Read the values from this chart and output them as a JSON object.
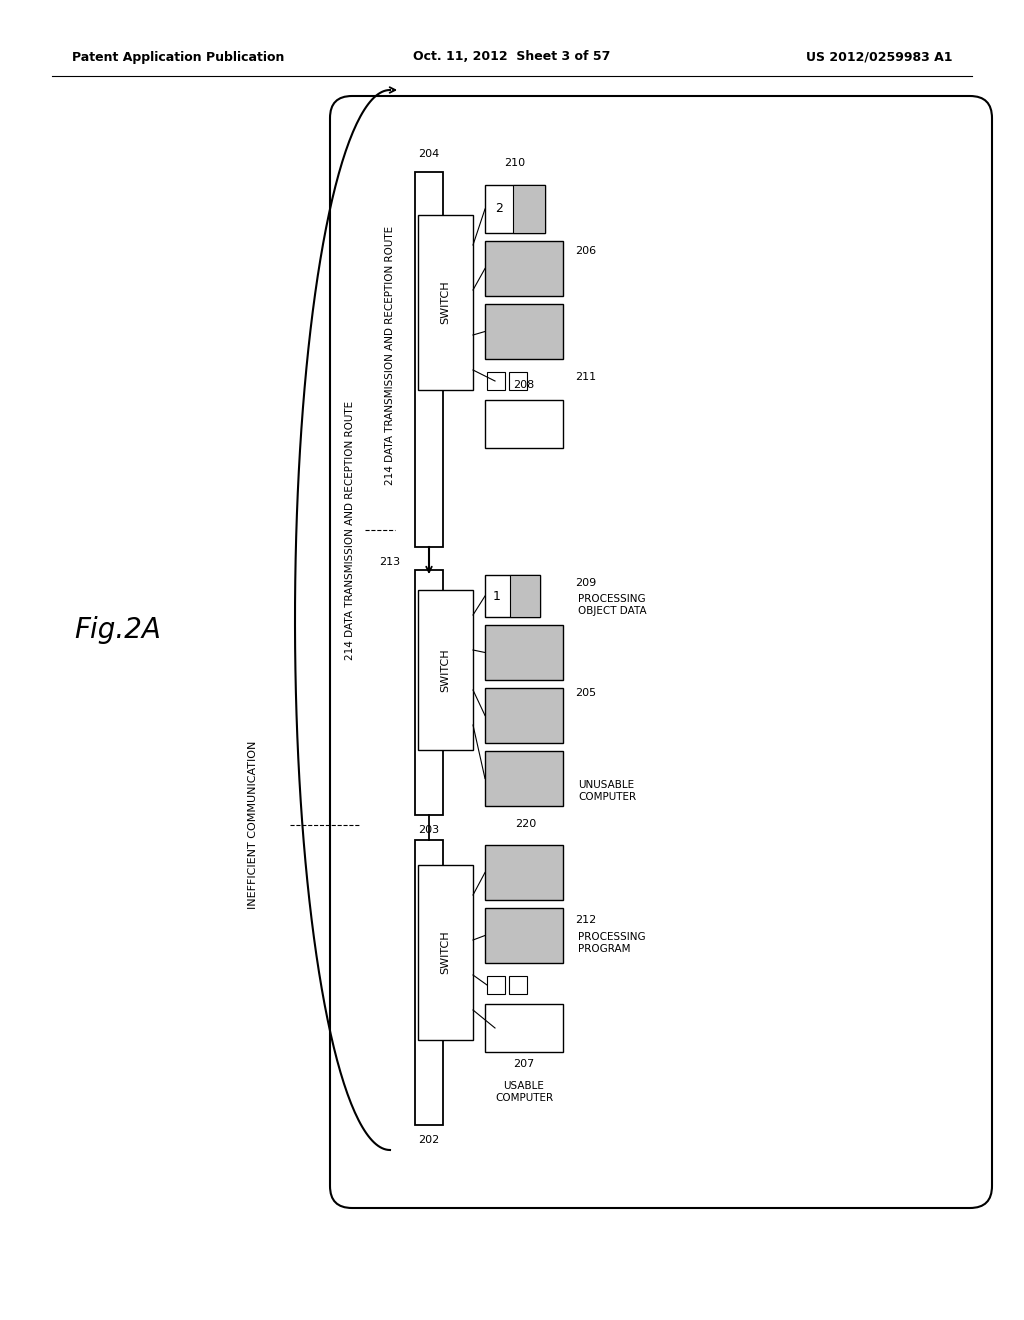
{
  "bg_color": "#ffffff",
  "header_left": "Patent Application Publication",
  "header_center": "Oct. 11, 2012  Sheet 3 of 57",
  "header_right": "US 2012/0259983 A1",
  "fig_label": "Fig.2A",
  "light_gray": "#c0c0c0",
  "labels": {
    "202": "202",
    "203": "203",
    "204": "204",
    "205": "205",
    "206": "206",
    "207": "207",
    "208": "208",
    "209": "209",
    "210": "210",
    "211": "211",
    "212": "212",
    "213": "213",
    "220": "220"
  },
  "text_usable_computer": "USABLE\nCOMPUTER",
  "text_unusable_computer": "UNUSABLE\nCOMPUTER",
  "text_processing_program": "PROCESSING\nPROGRAM",
  "text_processing_object_data": "PROCESSING\nOBJECT DATA",
  "text_switch": "SWITCH",
  "text_inefficient": "INEFFICIENT COMMUNICATION",
  "text_214": "214 DATA TRANSMISSION AND RECEPTION ROUTE"
}
